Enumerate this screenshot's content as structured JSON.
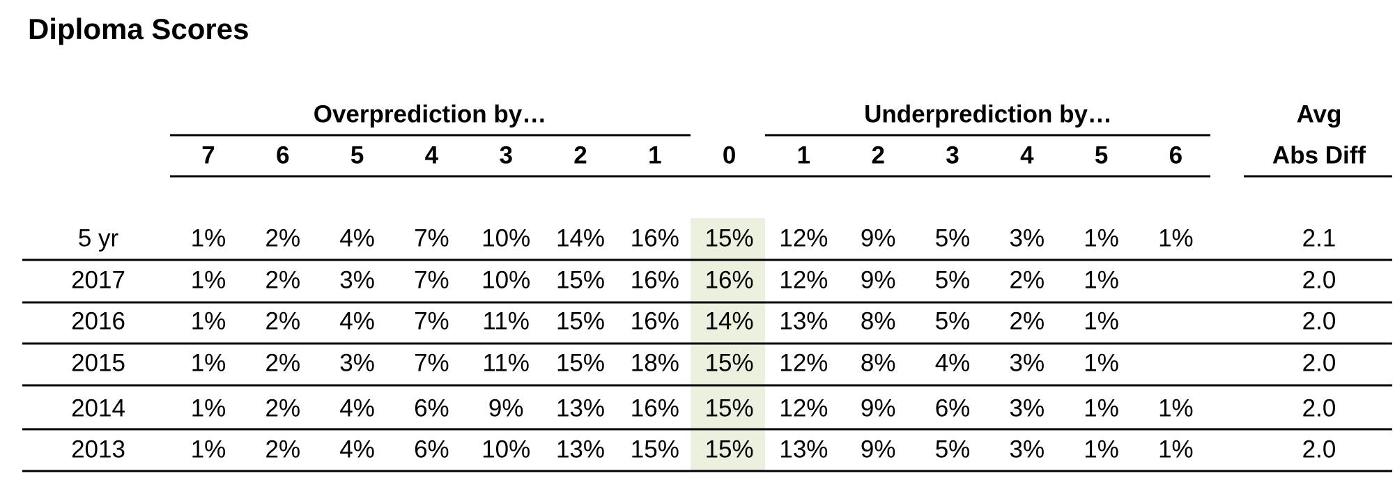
{
  "title": "Diploma Scores",
  "table": {
    "group_headers": [
      "Overprediction by…",
      "Underprediction by…"
    ],
    "avg_header": [
      "Avg",
      "Abs Diff"
    ],
    "columns": [
      "7",
      "6",
      "5",
      "4",
      "3",
      "2",
      "1",
      "0",
      "1",
      "2",
      "3",
      "4",
      "5",
      "6"
    ],
    "rows": [
      {
        "label": "5 yr",
        "values": [
          "1%",
          "2%",
          "4%",
          "7%",
          "10%",
          "14%",
          "16%",
          "15%",
          "12%",
          "9%",
          "5%",
          "3%",
          "1%",
          "1%"
        ],
        "avg": "2.1"
      },
      {
        "label": "2017",
        "values": [
          "1%",
          "2%",
          "3%",
          "7%",
          "10%",
          "15%",
          "16%",
          "16%",
          "12%",
          "9%",
          "5%",
          "2%",
          "1%",
          null
        ],
        "avg": "2.0"
      },
      {
        "label": "2016",
        "values": [
          "1%",
          "2%",
          "4%",
          "7%",
          "11%",
          "15%",
          "16%",
          "14%",
          "13%",
          "8%",
          "5%",
          "2%",
          "1%",
          null
        ],
        "avg": "2.0"
      },
      {
        "label": "2015",
        "values": [
          "1%",
          "2%",
          "3%",
          "7%",
          "11%",
          "15%",
          "18%",
          "15%",
          "12%",
          "8%",
          "4%",
          "3%",
          "1%",
          null
        ],
        "avg": "2.0"
      },
      {
        "label": "2014",
        "values": [
          "1%",
          "2%",
          "4%",
          "6%",
          "9%",
          "13%",
          "16%",
          "15%",
          "12%",
          "9%",
          "6%",
          "3%",
          "1%",
          "1%"
        ],
        "avg": "2.0"
      },
      {
        "label": "2013",
        "values": [
          "1%",
          "2%",
          "4%",
          "6%",
          "10%",
          "13%",
          "15%",
          "15%",
          "13%",
          "9%",
          "5%",
          "3%",
          "1%",
          "1%"
        ],
        "avg": "2.0"
      }
    ]
  }
}
